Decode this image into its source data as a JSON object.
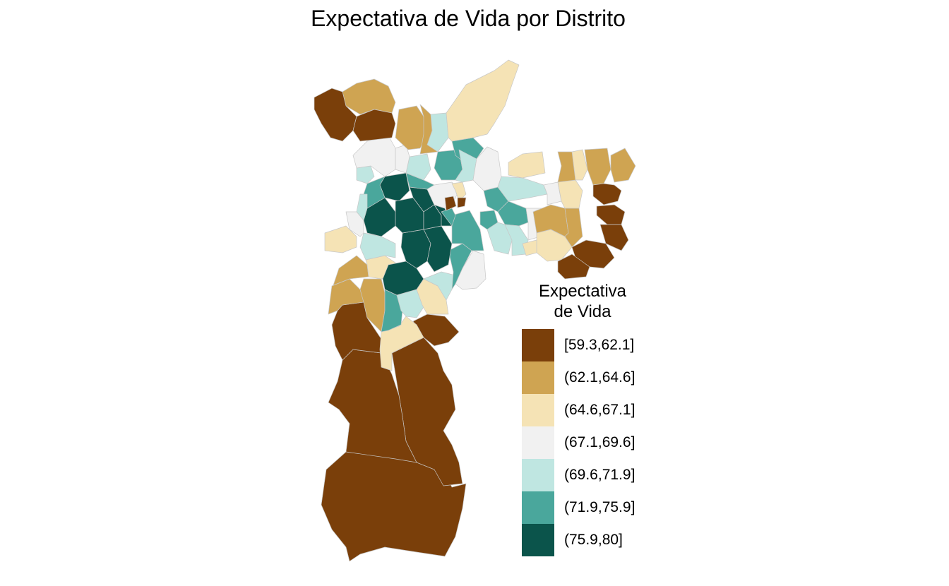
{
  "title": "Expectativa de Vida por Distrito",
  "legend": {
    "title_lines": [
      "Expectativa",
      "de Vida"
    ],
    "items": [
      {
        "label": "[59.3,62.1]",
        "color": "#7a3f0a"
      },
      {
        "label": "(62.1,64.6]",
        "color": "#cfa452"
      },
      {
        "label": "(64.6,67.1]",
        "color": "#f5e3b5"
      },
      {
        "label": "(67.1,69.6]",
        "color": "#f1f1f1"
      },
      {
        "label": "(69.6,71.9]",
        "color": "#bfe6e1"
      },
      {
        "label": "(71.9,75.9]",
        "color": "#4aa79c"
      },
      {
        "label": "(75.9,80]",
        "color": "#0b544b"
      }
    ]
  }
}
